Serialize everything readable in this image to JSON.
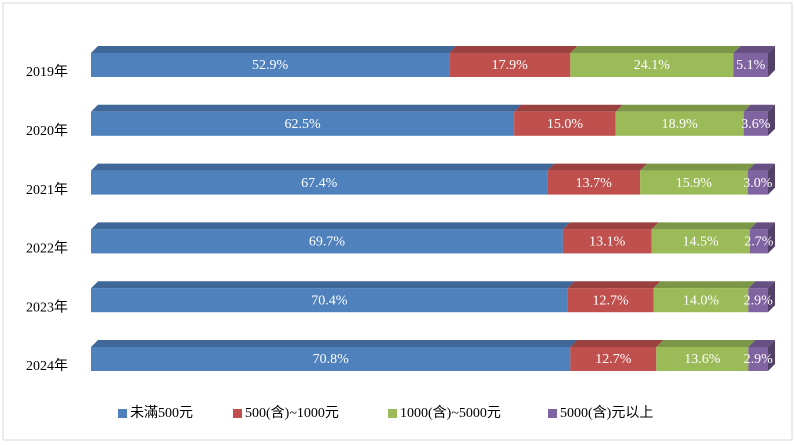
{
  "chart_data": {
    "type": "stacked-bar-horizontal",
    "categories": [
      "2019年",
      "2020年",
      "2021年",
      "2022年",
      "2023年",
      "2024年"
    ],
    "series": [
      {
        "name": "未滿500元",
        "color": "#4f81bd",
        "values": [
          52.9,
          62.5,
          67.4,
          69.7,
          70.4,
          70.8
        ],
        "value_labels": [
          "52.9%",
          "62.5%",
          "67.4%",
          "69.7%",
          "70.4%",
          "70.8%"
        ]
      },
      {
        "name": "500(含)~1000元",
        "color": "#c0504d",
        "values": [
          17.9,
          15.0,
          13.7,
          13.1,
          12.7,
          12.7
        ],
        "value_labels": [
          "17.9%",
          "15.0%",
          "13.7%",
          "13.1%",
          "12.7%",
          "12.7%"
        ]
      },
      {
        "name": "1000(含)~5000元",
        "color": "#9bbb59",
        "values": [
          24.1,
          18.9,
          15.9,
          14.5,
          14.0,
          13.6
        ],
        "value_labels": [
          "24.1%",
          "18.9%",
          "15.9%",
          "14.5%",
          "14.0%",
          "13.6%"
        ]
      },
      {
        "name": "5000(含)元以上",
        "color": "#8064a2",
        "values": [
          5.1,
          3.6,
          3.0,
          2.7,
          2.9,
          2.9
        ],
        "value_labels": [
          "5.1%",
          "3.6%",
          "3.0%",
          "2.7%",
          "2.9%",
          "2.9%"
        ]
      }
    ],
    "legend": "bottom"
  }
}
